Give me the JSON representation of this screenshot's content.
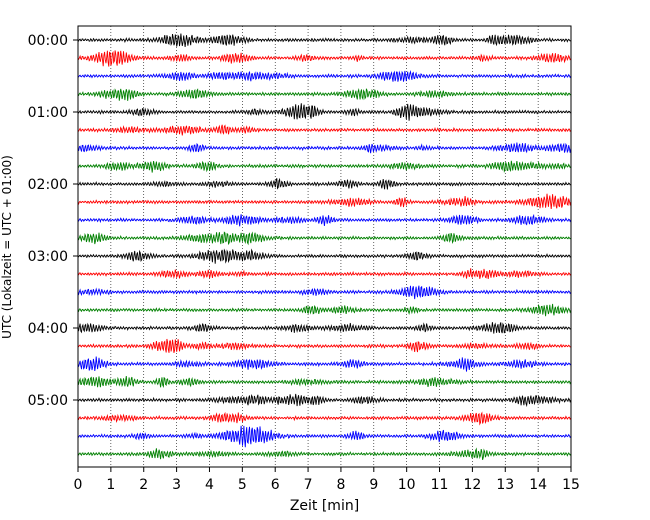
{
  "chart_data": {
    "type": "line",
    "xlabel": "Zeit  [min]",
    "ylabel": "UTC (Lokalzeit = UTC + 01:00)",
    "xlim": [
      0,
      15
    ],
    "x_ticks": [
      "0",
      "1",
      "2",
      "3",
      "4",
      "5",
      "6",
      "7",
      "8",
      "9",
      "10",
      "11",
      "12",
      "13",
      "14",
      "15"
    ],
    "y_ticks": [
      "00:00",
      "01:00",
      "02:00",
      "03:00",
      "04:00",
      "05:00"
    ],
    "grid": {
      "vertical": true,
      "style": "dotted"
    },
    "trace_colors": [
      "#000000",
      "#ff0000",
      "#0000ff",
      "#008000"
    ],
    "traces_per_hour": 4,
    "trace_count": 24,
    "minutes_per_trace": 15
  }
}
